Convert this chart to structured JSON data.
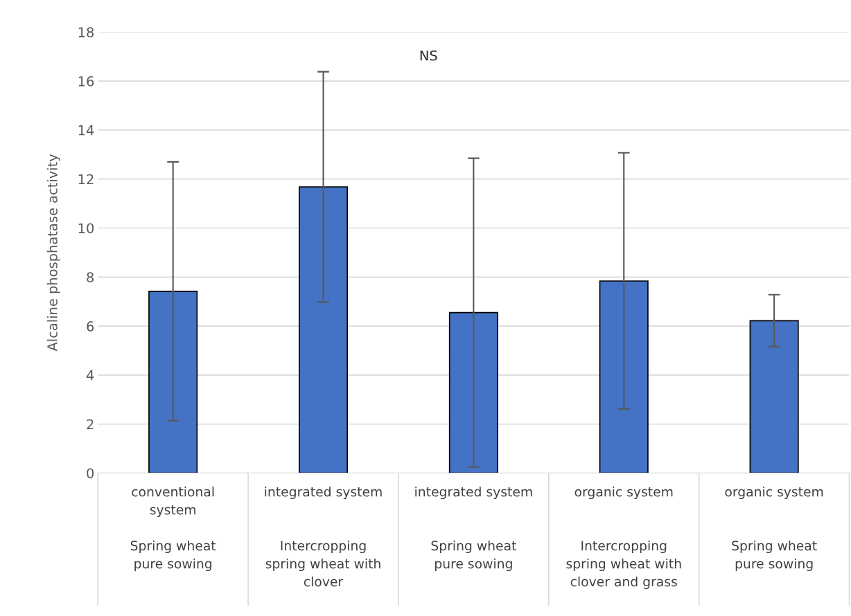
{
  "chart_data": {
    "type": "bar",
    "ylabel": "Alcaline phosphatase activity",
    "categories": [
      "conventional\nsystem\n\nSpring wheat\npure sowing",
      "integrated system\n\n\nIntercropping\nspring wheat with\nclover",
      "integrated system\n\n\nSpring wheat\npure sowing",
      "organic system\n\n\nIntercropping\nspring wheat with\nclover and grass",
      "organic system\n\n\nSpring wheat\npure sowing"
    ],
    "values": [
      7.42,
      11.68,
      6.55,
      7.84,
      6.22
    ],
    "errors": [
      5.28,
      4.7,
      6.3,
      5.23,
      1.06
    ],
    "color": "#4472c4",
    "ylim": [
      0,
      18
    ],
    "yticks": [
      0,
      2,
      4,
      6,
      8,
      10,
      12,
      14,
      16,
      18
    ],
    "grid": "y",
    "annotations": [
      "NS"
    ]
  }
}
